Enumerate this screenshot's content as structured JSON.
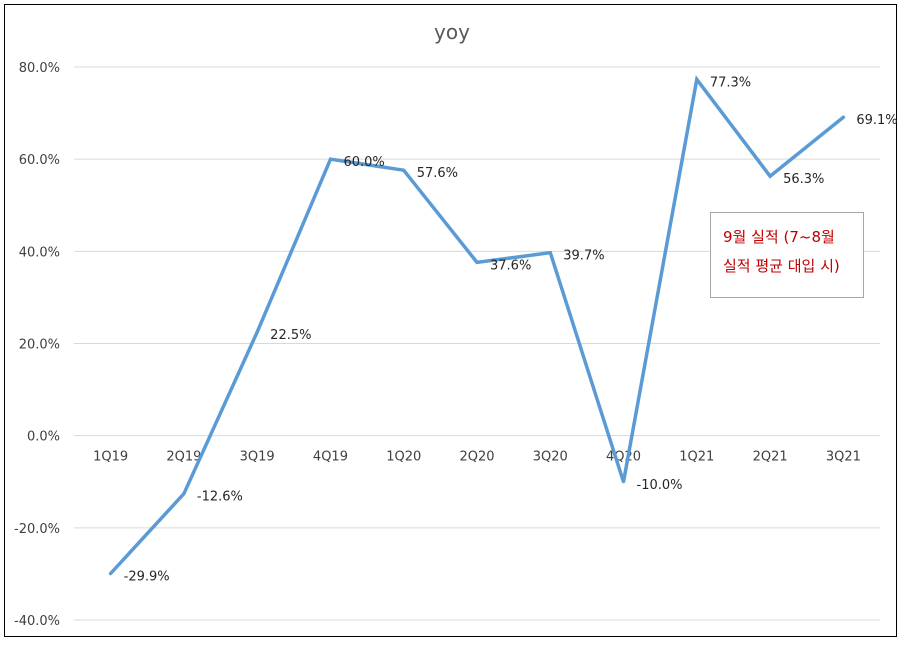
{
  "chart_data": {
    "type": "line",
    "title": "yoy",
    "categories": [
      "1Q19",
      "2Q19",
      "3Q19",
      "4Q19",
      "1Q20",
      "2Q20",
      "3Q20",
      "4Q20",
      "1Q21",
      "2Q21",
      "3Q21"
    ],
    "series": [
      {
        "values": [
          -29.9,
          -12.6,
          22.5,
          60.0,
          57.6,
          37.6,
          39.7,
          -10.0,
          77.3,
          56.3,
          69.1
        ],
        "data_labels": [
          "-29.9%",
          "-12.6%",
          "22.5%",
          "60.0%",
          "57.6%",
          "37.6%",
          "39.7%",
          "-10.0%",
          "77.3%",
          "56.3%",
          "69.1%"
        ],
        "color": "#5b9bd5"
      }
    ],
    "y_ticks": [
      -40,
      -20,
      0,
      20,
      40,
      60,
      80
    ],
    "y_tick_labels": [
      "-40.0%",
      "-20.0%",
      "0.0%",
      "20.0%",
      "40.0%",
      "60.0%",
      "80.0%"
    ],
    "ylim": [
      -40,
      80
    ],
    "grid": true,
    "gridline_color": "#d9d9d9",
    "axis_color": "#d9d9d9"
  },
  "annotation": {
    "lines": [
      "9월 실적 (7~8월",
      "실적 평균 대입 시)"
    ],
    "color": "#c00000"
  }
}
